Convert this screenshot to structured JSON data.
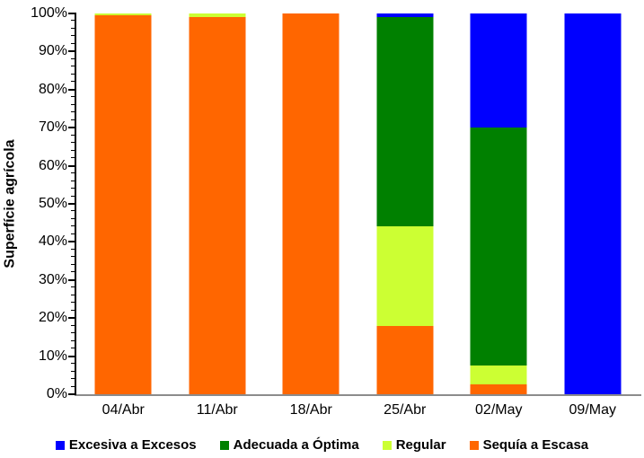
{
  "chart_data": {
    "type": "bar",
    "stacked": true,
    "percent_stacked": true,
    "title": "",
    "xlabel": "",
    "ylabel": "Superfície agrícola",
    "ylim": [
      0,
      100
    ],
    "y_major_tick_step": 10,
    "y_minor_tick_step": 2,
    "y_tick_suffix": "%",
    "grid": false,
    "legend_position": "bottom",
    "categories": [
      "04/Abr",
      "11/Abr",
      "18/Abr",
      "25/Abr",
      "02/May",
      "09/May"
    ],
    "series": [
      {
        "name": "Excesiva a Excesos",
        "color": "#0000FF",
        "values": [
          0,
          0,
          0,
          1,
          30,
          100
        ]
      },
      {
        "name": "Adecuada a Óptima",
        "color": "#008000",
        "values": [
          0,
          0,
          0,
          55,
          62.5,
          0
        ]
      },
      {
        "name": "Regular",
        "color": "#CCFF33",
        "values": [
          0.5,
          1,
          0,
          26,
          5,
          0
        ]
      },
      {
        "name": "Sequía a Escasa",
        "color": "#FF6600",
        "values": [
          99.5,
          99,
          100,
          18,
          2.5,
          0
        ]
      }
    ],
    "colors": {
      "excess_blue": "#0000FF",
      "adequate_green": "#008000",
      "regular_lime": "#CCFF33",
      "drought_orange": "#FF6600",
      "y_axis": "#000000",
      "x_axis": "#8C8C8C",
      "background": "#FFFFFF"
    }
  }
}
